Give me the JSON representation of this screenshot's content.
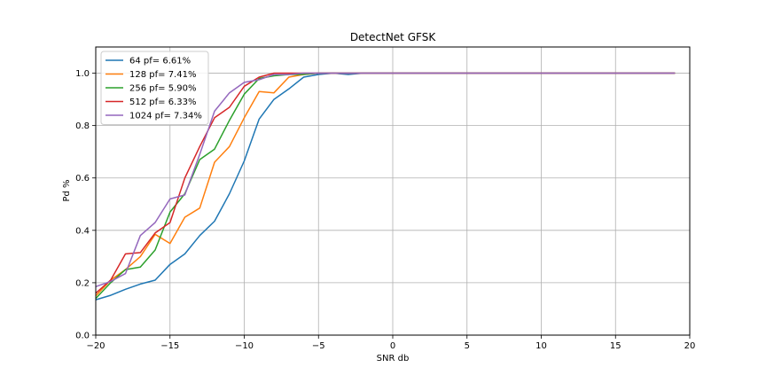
{
  "chart_data": {
    "type": "line",
    "title": "DetectNet GFSK",
    "xlabel": "SNR db",
    "ylabel": "Pd %",
    "xlim": [
      -20,
      20
    ],
    "ylim": [
      0.0,
      1.1
    ],
    "xticks": [
      "−20",
      "−15",
      "−10",
      "−5",
      "0",
      "5",
      "10",
      "15",
      "20"
    ],
    "xtick_values": [
      -20,
      -15,
      -10,
      -5,
      0,
      5,
      10,
      15,
      20
    ],
    "yticks": [
      "0.0",
      "0.2",
      "0.4",
      "0.6",
      "0.8",
      "1.0"
    ],
    "ytick_values": [
      0.0,
      0.2,
      0.4,
      0.6,
      0.8,
      1.0
    ],
    "grid": true,
    "legend_position": "top-left",
    "x": [
      -20,
      -19,
      -18,
      -17,
      -16,
      -15,
      -14,
      -13,
      -12,
      -11,
      -10,
      -9,
      -8,
      -7,
      -6,
      -5,
      -4,
      -3,
      -2,
      -1,
      0,
      1,
      2,
      3,
      4,
      5,
      6,
      7,
      8,
      9,
      10,
      11,
      12,
      13,
      14,
      15,
      16,
      17,
      18,
      19
    ],
    "series": [
      {
        "name": "64 pf= 6.61%",
        "color": "#1f77b4",
        "values": [
          0.135,
          0.152,
          0.175,
          0.195,
          0.21,
          0.27,
          0.31,
          0.38,
          0.435,
          0.54,
          0.665,
          0.825,
          0.9,
          0.94,
          0.985,
          0.995,
          1.0,
          0.995,
          1.0,
          1.0,
          1.0,
          1.0,
          1.0,
          1.0,
          1.0,
          1.0,
          1.0,
          1.0,
          1.0,
          1.0,
          1.0,
          1.0,
          1.0,
          1.0,
          1.0,
          1.0,
          1.0,
          1.0,
          1.0,
          1.0
        ]
      },
      {
        "name": "128 pf= 7.41%",
        "color": "#ff7f0e",
        "values": [
          0.15,
          0.21,
          0.25,
          0.3,
          0.385,
          0.35,
          0.45,
          0.485,
          0.66,
          0.72,
          0.83,
          0.93,
          0.925,
          0.985,
          0.995,
          1.0,
          1.0,
          1.0,
          1.0,
          1.0,
          1.0,
          1.0,
          1.0,
          1.0,
          1.0,
          1.0,
          1.0,
          1.0,
          1.0,
          1.0,
          1.0,
          1.0,
          1.0,
          1.0,
          1.0,
          1.0,
          1.0,
          1.0,
          1.0,
          1.0
        ]
      },
      {
        "name": "256 pf= 5.90%",
        "color": "#2ca02c",
        "values": [
          0.14,
          0.2,
          0.25,
          0.26,
          0.325,
          0.47,
          0.54,
          0.67,
          0.71,
          0.82,
          0.92,
          0.98,
          0.99,
          0.995,
          0.995,
          1.0,
          1.0,
          1.0,
          1.0,
          1.0,
          1.0,
          1.0,
          1.0,
          1.0,
          1.0,
          1.0,
          1.0,
          1.0,
          1.0,
          1.0,
          1.0,
          1.0,
          1.0,
          1.0,
          1.0,
          1.0,
          1.0,
          1.0,
          1.0,
          1.0
        ]
      },
      {
        "name": "512 pf= 6.33%",
        "color": "#d62728",
        "values": [
          0.16,
          0.21,
          0.31,
          0.315,
          0.39,
          0.43,
          0.6,
          0.72,
          0.83,
          0.87,
          0.95,
          0.985,
          1.0,
          1.0,
          1.0,
          1.0,
          1.0,
          1.0,
          1.0,
          1.0,
          1.0,
          1.0,
          1.0,
          1.0,
          1.0,
          1.0,
          1.0,
          1.0,
          1.0,
          1.0,
          1.0,
          1.0,
          1.0,
          1.0,
          1.0,
          1.0,
          1.0,
          1.0,
          1.0,
          1.0
        ]
      },
      {
        "name": "1024 pf= 7.34%",
        "color": "#9467bd",
        "values": [
          0.185,
          0.205,
          0.235,
          0.38,
          0.43,
          0.52,
          0.535,
          0.69,
          0.855,
          0.925,
          0.965,
          0.975,
          0.995,
          0.995,
          1.0,
          1.0,
          1.0,
          1.0,
          1.0,
          1.0,
          1.0,
          1.0,
          1.0,
          1.0,
          1.0,
          1.0,
          1.0,
          1.0,
          1.0,
          1.0,
          1.0,
          1.0,
          1.0,
          1.0,
          1.0,
          1.0,
          1.0,
          1.0,
          1.0,
          1.0
        ]
      }
    ]
  }
}
